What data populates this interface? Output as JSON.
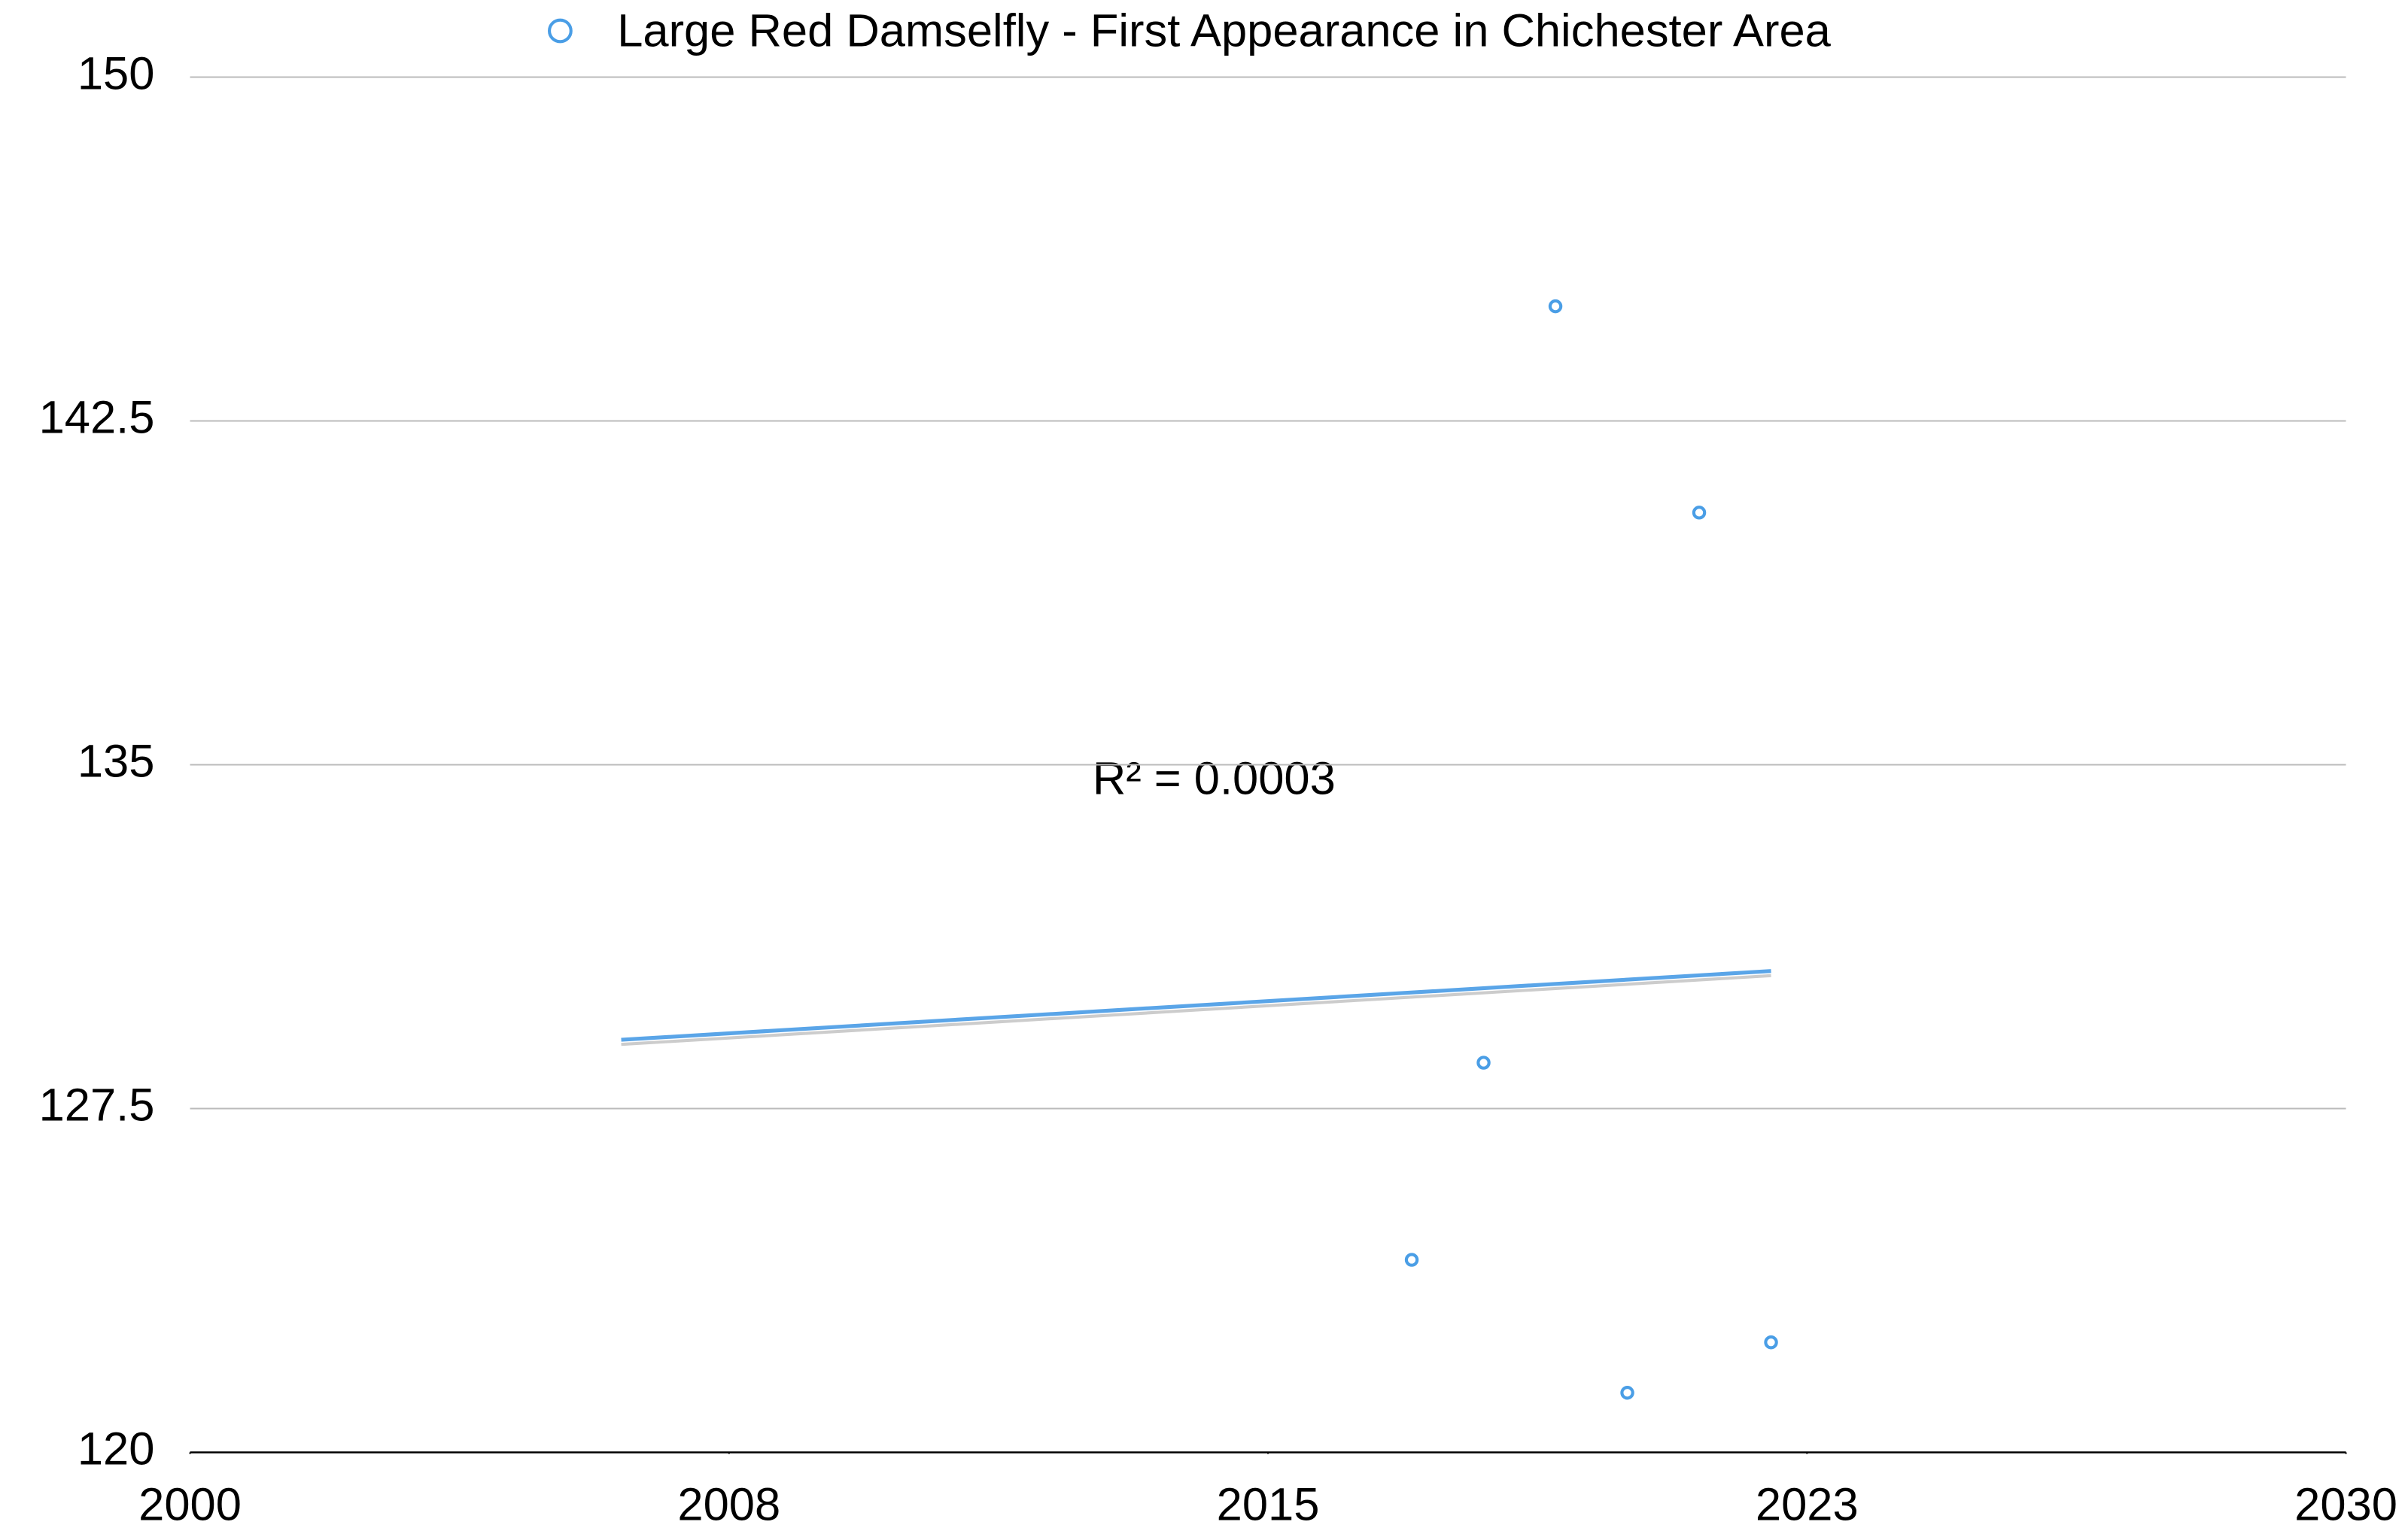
{
  "chart_data": {
    "type": "scatter",
    "series": [
      {
        "name": "Large Red Damselfly - First Appearance in Chichester Area",
        "color": "#4a9ee6",
        "x": [
          2017,
          2018,
          2019,
          2020,
          2021,
          2022
        ],
        "values": [
          124.2,
          128.5,
          145,
          121.3,
          140.5,
          122.4
        ]
      }
    ],
    "trendline": {
      "x": [
        2006,
        2022
      ],
      "values": [
        129,
        130.5
      ],
      "color": "#5aa5e8"
    },
    "annotations": [
      "R² = 0.0003"
    ],
    "xlim": [
      2000,
      2030
    ],
    "xticks": [
      2000,
      {
        "value": 2007.5,
        "label": "2008"
      },
      2015,
      {
        "value": 2022.5,
        "label": "2023"
      },
      2030
    ],
    "ylim": [
      120,
      150
    ],
    "yticks": [
      120,
      127.5,
      135,
      142.5,
      150
    ],
    "grid": true,
    "legend": "top"
  }
}
